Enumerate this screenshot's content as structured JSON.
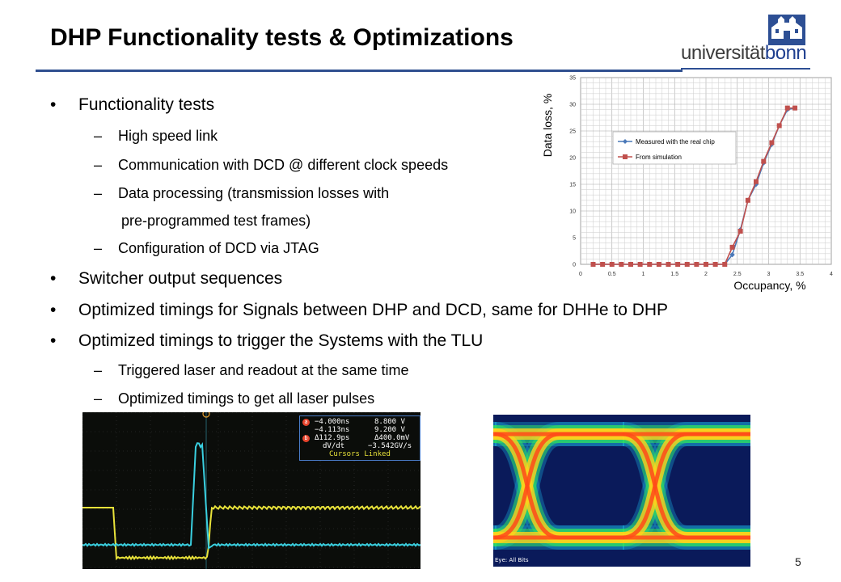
{
  "slide": {
    "title": "DHP Functionality tests & Optimizations",
    "page_number": "5"
  },
  "logo": {
    "text_plain": "universität",
    "text_bold": "bonn"
  },
  "bullets": [
    {
      "level": 1,
      "text": "Functionality tests"
    },
    {
      "level": 2,
      "text": "High speed link"
    },
    {
      "level": 2,
      "text": "Communication with DCD @ different clock speeds"
    },
    {
      "level": 2,
      "text": "Data processing (transmission losses with"
    },
    {
      "level": 3,
      "text": "pre-programmed test frames)"
    },
    {
      "level": 2,
      "text": "Configuration of DCD via JTAG"
    },
    {
      "level": 1,
      "text": "Switcher output sequences"
    },
    {
      "level": 1,
      "text": "Optimized timings for Signals between DHP and DCD, same for DHHe to DHP"
    },
    {
      "level": 1,
      "text": "Optimized timings to trigger the Systems with the TLU"
    },
    {
      "level": 2,
      "text": "Triggered laser and readout at the same time"
    },
    {
      "level": 2,
      "text": "Optimized timings to get all laser pulses"
    }
  ],
  "chart_data": {
    "type": "line",
    "xlabel": "Occupancy, %",
    "ylabel": "Data loss, %",
    "xlim": [
      0,
      4
    ],
    "ylim": [
      0,
      35
    ],
    "x_ticks": [
      "0",
      "0.5",
      "1",
      "1.5",
      "2",
      "2.5",
      "3",
      "3.5",
      "4"
    ],
    "y_ticks": [
      "0",
      "5",
      "10",
      "15",
      "20",
      "25",
      "30",
      "35"
    ],
    "grid": true,
    "legend_position": "top-left",
    "series": [
      {
        "name": "Measured with the real chip",
        "color": "#4a78b8",
        "marker": "diamond",
        "x": [
          0.2,
          0.35,
          0.5,
          0.65,
          0.8,
          0.95,
          1.1,
          1.25,
          1.4,
          1.55,
          1.7,
          1.85,
          2.0,
          2.15,
          2.3,
          2.42,
          2.55,
          2.67,
          2.8,
          2.92,
          3.05,
          3.17,
          3.3,
          3.42
        ],
        "y": [
          0,
          0,
          0,
          0,
          0,
          0,
          0,
          0,
          0,
          0,
          0,
          0,
          0,
          0,
          0,
          1.8,
          6.5,
          12,
          15,
          19,
          22.5,
          26,
          29,
          29.3
        ]
      },
      {
        "name": "From simulation",
        "color": "#c0504d",
        "marker": "square",
        "x": [
          0.2,
          0.35,
          0.5,
          0.65,
          0.8,
          0.95,
          1.1,
          1.25,
          1.4,
          1.55,
          1.7,
          1.85,
          2.0,
          2.15,
          2.3,
          2.42,
          2.55,
          2.67,
          2.8,
          2.92,
          3.05,
          3.17,
          3.3,
          3.42
        ],
        "y": [
          0,
          0,
          0,
          0,
          0,
          0,
          0,
          0,
          0,
          0,
          0,
          0,
          0,
          0,
          0,
          3.2,
          6.2,
          12,
          15.5,
          19.3,
          22.8,
          26,
          29.3,
          29.3
        ]
      }
    ]
  },
  "scope": {
    "cursor_rows": [
      {
        "a": "−4.000ns",
        "b": "8.800 V"
      },
      {
        "a": "−4.113ns",
        "b": "9.200 V"
      },
      {
        "a": "Δ112.9ps",
        "b": "Δ400.0mV"
      },
      {
        "a": "dV/dt",
        "b": "−3.542GV/s"
      }
    ],
    "linked_label": "Cursors Linked",
    "marker_a": "a",
    "marker_b": "b",
    "trace1_color": "#e8e23a",
    "trace2_color": "#3ad0e0"
  },
  "eye": {
    "footer": "Eye: All Bits"
  }
}
